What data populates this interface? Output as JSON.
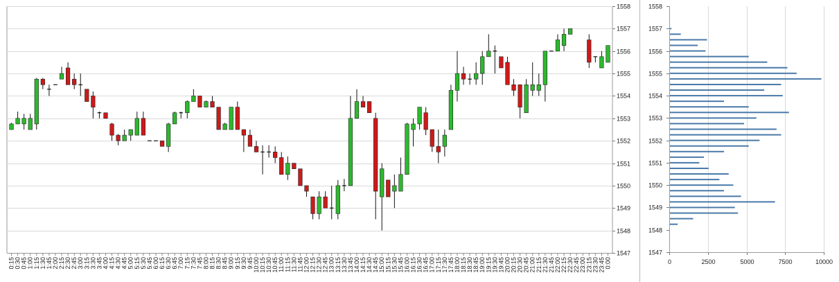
{
  "chart_data": [
    {
      "type": "candlestick",
      "title": "",
      "xlabel": "",
      "ylabel": "",
      "ylim": [
        1547,
        1558
      ],
      "y_ticks": [
        1547,
        1548,
        1549,
        1550,
        1551,
        1552,
        1553,
        1554,
        1555,
        1556,
        1557,
        1558
      ],
      "y_tick_labels": [
        "1547",
        "1548",
        "1549",
        "1550",
        "1551",
        "1552",
        "1553",
        "1554",
        "1555",
        "1556",
        "1557",
        "1558"
      ],
      "y_axis_position": "right",
      "grid": "horizontal",
      "up_color": "#2eb82e",
      "down_color": "#cc1a1a",
      "categories": [
        "0:15",
        "0:30",
        "0:45",
        "1:00",
        "1:15",
        "1:30",
        "1:45",
        "2:00",
        "2:15",
        "2:30",
        "2:45",
        "3:00",
        "3:15",
        "3:30",
        "3:45",
        "4:00",
        "4:15",
        "4:30",
        "4:45",
        "5:00",
        "5:15",
        "5:30",
        "5:45",
        "6:00",
        "6:15",
        "6:30",
        "6:45",
        "7:00",
        "7:15",
        "7:30",
        "7:45",
        "8:00",
        "8:15",
        "8:30",
        "8:45",
        "9:00",
        "9:15",
        "9:30",
        "9:45",
        "10:00",
        "10:15",
        "10:30",
        "10:45",
        "11:00",
        "11:15",
        "11:30",
        "11:45",
        "12:00",
        "12:15",
        "12:30",
        "12:45",
        "13:00",
        "13:15",
        "13:30",
        "13:45",
        "14:00",
        "14:15",
        "14:30",
        "14:45",
        "15:00",
        "15:15",
        "15:30",
        "15:45",
        "16:00",
        "16:15",
        "16:30",
        "16:45",
        "17:00",
        "17:15",
        "17:30",
        "17:45",
        "18:00",
        "18:15",
        "18:30",
        "18:45",
        "19:00",
        "19:15",
        "19:30",
        "19:45",
        "20:00",
        "20:15",
        "20:30",
        "20:45",
        "21:00",
        "21:15",
        "21:30",
        "21:45",
        "22:00",
        "22:15",
        "22:30",
        "22:45",
        "23:00",
        "23:15",
        "23:30",
        "23:45",
        "0:00"
      ],
      "candles": [
        {
          "o": 1552.5,
          "h": 1552.8,
          "l": 1552.5,
          "c": 1552.75
        },
        {
          "o": 1552.75,
          "h": 1553.3,
          "l": 1552.75,
          "c": 1553.0
        },
        {
          "o": 1552.75,
          "h": 1553.2,
          "l": 1552.5,
          "c": 1553.0
        },
        {
          "o": 1552.5,
          "h": 1553.2,
          "l": 1552.5,
          "c": 1553.0
        },
        {
          "o": 1552.75,
          "h": 1554.8,
          "l": 1552.5,
          "c": 1554.75
        },
        {
          "o": 1554.75,
          "h": 1554.8,
          "l": 1554.3,
          "c": 1554.5
        },
        {
          "o": 1554.3,
          "h": 1554.5,
          "l": 1554.0,
          "c": 1554.3
        },
        {
          "o": 1554.5,
          "h": 1554.5,
          "l": 1554.5,
          "c": 1554.5
        },
        {
          "o": 1554.75,
          "h": 1555.3,
          "l": 1554.75,
          "c": 1555.0
        },
        {
          "o": 1555.25,
          "h": 1555.5,
          "l": 1554.5,
          "c": 1554.5
        },
        {
          "o": 1554.75,
          "h": 1555.0,
          "l": 1554.3,
          "c": 1554.5
        },
        {
          "o": 1554.5,
          "h": 1555.0,
          "l": 1554.0,
          "c": 1554.5
        },
        {
          "o": 1554.3,
          "h": 1554.3,
          "l": 1553.75,
          "c": 1553.75
        },
        {
          "o": 1554.0,
          "h": 1554.2,
          "l": 1553.0,
          "c": 1553.5
        },
        {
          "o": 1553.25,
          "h": 1553.3,
          "l": 1553.0,
          "c": 1553.25
        },
        {
          "o": 1553.25,
          "h": 1553.25,
          "l": 1553.0,
          "c": 1553.0
        },
        {
          "o": 1552.75,
          "h": 1552.8,
          "l": 1552.0,
          "c": 1552.25
        },
        {
          "o": 1552.25,
          "h": 1552.3,
          "l": 1551.8,
          "c": 1552.0
        },
        {
          "o": 1552.0,
          "h": 1552.5,
          "l": 1552.0,
          "c": 1552.25
        },
        {
          "o": 1552.25,
          "h": 1552.5,
          "l": 1552.0,
          "c": 1552.5
        },
        {
          "o": 1552.25,
          "h": 1553.3,
          "l": 1552.25,
          "c": 1553.0
        },
        {
          "o": 1553.0,
          "h": 1553.3,
          "l": 1552.25,
          "c": 1552.25
        },
        {
          "o": 1552.0,
          "h": 1552.0,
          "l": 1552.0,
          "c": 1552.0
        },
        {
          "o": 1552.0,
          "h": 1552.0,
          "l": 1552.0,
          "c": 1552.0
        },
        {
          "o": 1552.0,
          "h": 1552.0,
          "l": 1551.75,
          "c": 1551.75
        },
        {
          "o": 1551.75,
          "h": 1552.8,
          "l": 1551.5,
          "c": 1552.75
        },
        {
          "o": 1552.75,
          "h": 1553.3,
          "l": 1552.75,
          "c": 1553.25
        },
        {
          "o": 1553.25,
          "h": 1553.3,
          "l": 1553.0,
          "c": 1553.25
        },
        {
          "o": 1553.25,
          "h": 1553.8,
          "l": 1553.0,
          "c": 1553.75
        },
        {
          "o": 1553.75,
          "h": 1554.3,
          "l": 1553.75,
          "c": 1554.0
        },
        {
          "o": 1554.0,
          "h": 1554.0,
          "l": 1553.5,
          "c": 1553.5
        },
        {
          "o": 1553.5,
          "h": 1553.8,
          "l": 1553.5,
          "c": 1553.75
        },
        {
          "o": 1553.75,
          "h": 1554.0,
          "l": 1553.5,
          "c": 1553.5
        },
        {
          "o": 1553.5,
          "h": 1553.5,
          "l": 1552.5,
          "c": 1552.5
        },
        {
          "o": 1552.5,
          "h": 1552.8,
          "l": 1552.5,
          "c": 1552.75
        },
        {
          "o": 1552.5,
          "h": 1553.5,
          "l": 1552.5,
          "c": 1553.5
        },
        {
          "o": 1553.5,
          "h": 1553.75,
          "l": 1552.5,
          "c": 1552.5
        },
        {
          "o": 1552.5,
          "h": 1552.5,
          "l": 1551.5,
          "c": 1552.25
        },
        {
          "o": 1552.25,
          "h": 1552.5,
          "l": 1551.75,
          "c": 1551.75
        },
        {
          "o": 1551.75,
          "h": 1552.0,
          "l": 1551.5,
          "c": 1551.5
        },
        {
          "o": 1551.5,
          "h": 1551.8,
          "l": 1550.5,
          "c": 1551.5
        },
        {
          "o": 1551.5,
          "h": 1551.8,
          "l": 1551.25,
          "c": 1551.5
        },
        {
          "o": 1551.5,
          "h": 1551.75,
          "l": 1551.0,
          "c": 1551.25
        },
        {
          "o": 1551.25,
          "h": 1551.5,
          "l": 1550.5,
          "c": 1550.5
        },
        {
          "o": 1550.5,
          "h": 1551.3,
          "l": 1550.25,
          "c": 1551.0
        },
        {
          "o": 1551.0,
          "h": 1551.0,
          "l": 1550.75,
          "c": 1550.75
        },
        {
          "o": 1550.75,
          "h": 1550.75,
          "l": 1550.0,
          "c": 1550.0
        },
        {
          "o": 1550.0,
          "h": 1550.0,
          "l": 1549.5,
          "c": 1549.75
        },
        {
          "o": 1549.5,
          "h": 1549.5,
          "l": 1548.5,
          "c": 1548.75
        },
        {
          "o": 1548.75,
          "h": 1549.75,
          "l": 1548.5,
          "c": 1549.5
        },
        {
          "o": 1549.5,
          "h": 1549.75,
          "l": 1549.0,
          "c": 1549.0
        },
        {
          "o": 1549.0,
          "h": 1550.0,
          "l": 1548.5,
          "c": 1549.0
        },
        {
          "o": 1548.75,
          "h": 1550.25,
          "l": 1548.5,
          "c": 1550.0
        },
        {
          "o": 1550.0,
          "h": 1550.3,
          "l": 1549.75,
          "c": 1550.0
        },
        {
          "o": 1550.0,
          "h": 1554.0,
          "l": 1550.0,
          "c": 1553.0
        },
        {
          "o": 1553.0,
          "h": 1554.3,
          "l": 1553.0,
          "c": 1553.75
        },
        {
          "o": 1553.75,
          "h": 1554.0,
          "l": 1553.5,
          "c": 1553.5
        },
        {
          "o": 1553.75,
          "h": 1553.75,
          "l": 1553.25,
          "c": 1553.25
        },
        {
          "o": 1553.0,
          "h": 1553.25,
          "l": 1548.5,
          "c": 1549.75
        },
        {
          "o": 1549.5,
          "h": 1551.0,
          "l": 1548.0,
          "c": 1550.75
        },
        {
          "o": 1550.25,
          "h": 1550.25,
          "l": 1549.5,
          "c": 1549.5
        },
        {
          "o": 1549.75,
          "h": 1550.5,
          "l": 1549.0,
          "c": 1550.0
        },
        {
          "o": 1549.75,
          "h": 1551.25,
          "l": 1549.75,
          "c": 1550.5
        },
        {
          "o": 1550.5,
          "h": 1552.8,
          "l": 1550.5,
          "c": 1552.75
        },
        {
          "o": 1552.5,
          "h": 1553.0,
          "l": 1551.75,
          "c": 1552.75
        },
        {
          "o": 1552.75,
          "h": 1553.5,
          "l": 1552.5,
          "c": 1553.5
        },
        {
          "o": 1553.25,
          "h": 1553.5,
          "l": 1552.25,
          "c": 1552.5
        },
        {
          "o": 1552.5,
          "h": 1552.5,
          "l": 1551.5,
          "c": 1551.75
        },
        {
          "o": 1551.75,
          "h": 1552.5,
          "l": 1551.0,
          "c": 1551.5
        },
        {
          "o": 1551.75,
          "h": 1552.5,
          "l": 1551.3,
          "c": 1552.25
        },
        {
          "o": 1552.5,
          "h": 1554.5,
          "l": 1552.5,
          "c": 1554.25
        },
        {
          "o": 1554.25,
          "h": 1556.0,
          "l": 1553.75,
          "c": 1555.0
        },
        {
          "o": 1555.0,
          "h": 1555.3,
          "l": 1554.5,
          "c": 1554.75
        },
        {
          "o": 1554.75,
          "h": 1555.0,
          "l": 1554.5,
          "c": 1554.75
        },
        {
          "o": 1554.75,
          "h": 1555.5,
          "l": 1554.5,
          "c": 1555.0
        },
        {
          "o": 1555.0,
          "h": 1556.0,
          "l": 1554.5,
          "c": 1555.75
        },
        {
          "o": 1555.75,
          "h": 1556.75,
          "l": 1555.75,
          "c": 1556.0
        },
        {
          "o": 1556.0,
          "h": 1556.25,
          "l": 1555.0,
          "c": 1556.0
        },
        {
          "o": 1555.75,
          "h": 1555.75,
          "l": 1555.25,
          "c": 1555.25
        },
        {
          "o": 1555.5,
          "h": 1555.75,
          "l": 1554.5,
          "c": 1554.5
        },
        {
          "o": 1554.5,
          "h": 1554.75,
          "l": 1554.0,
          "c": 1554.25
        },
        {
          "o": 1554.5,
          "h": 1554.5,
          "l": 1553.0,
          "c": 1553.5
        },
        {
          "o": 1553.25,
          "h": 1554.75,
          "l": 1553.25,
          "c": 1554.5
        },
        {
          "o": 1554.25,
          "h": 1555.5,
          "l": 1554.0,
          "c": 1554.5
        },
        {
          "o": 1554.25,
          "h": 1555.0,
          "l": 1554.0,
          "c": 1554.5
        },
        {
          "o": 1554.5,
          "h": 1556.0,
          "l": 1553.75,
          "c": 1556.0
        },
        {
          "o": 1556.0,
          "h": 1556.0,
          "l": 1556.0,
          "c": 1556.0
        },
        {
          "o": 1556.0,
          "h": 1556.75,
          "l": 1556.0,
          "c": 1556.5
        },
        {
          "o": 1556.25,
          "h": 1557.0,
          "l": 1556.0,
          "c": 1556.75
        },
        {
          "o": 1556.75,
          "h": 1557.0,
          "l": 1556.75,
          "c": 1557.0
        },
        null,
        null,
        {
          "o": 1556.5,
          "h": 1556.75,
          "l": 1555.25,
          "c": 1555.5
        },
        {
          "o": 1555.75,
          "h": 1555.75,
          "l": 1555.5,
          "c": 1555.75
        },
        {
          "o": 1555.25,
          "h": 1556.0,
          "l": 1555.25,
          "c": 1555.75
        },
        {
          "o": 1555.5,
          "h": 1556.25,
          "l": 1555.5,
          "c": 1556.25
        }
      ]
    },
    {
      "type": "bar",
      "orientation": "horizontal",
      "title": "",
      "xlabel": "",
      "ylabel": "",
      "xlim": [
        0,
        10000
      ],
      "x_ticks": [
        0,
        2500,
        5000,
        7500,
        10000
      ],
      "x_tick_labels": [
        "0",
        "2500",
        "5000",
        "7500",
        "10000"
      ],
      "ylim": [
        1547,
        1558
      ],
      "y_ticks": [
        1547,
        1548,
        1549,
        1550,
        1551,
        1552,
        1553,
        1554,
        1555,
        1556,
        1557,
        1558
      ],
      "y_tick_labels": [
        "1547",
        "1548",
        "1549",
        "1550",
        "1551",
        "1552",
        "1553",
        "1554",
        "1555",
        "1556",
        "1557",
        "1558"
      ],
      "grid": "vertical",
      "bar_color": "#4a79a8",
      "prices": [
        1548.25,
        1548.5,
        1548.75,
        1549.0,
        1549.25,
        1549.5,
        1549.75,
        1550.0,
        1550.25,
        1550.5,
        1550.75,
        1551.0,
        1551.25,
        1551.5,
        1551.75,
        1552.0,
        1552.25,
        1552.5,
        1552.75,
        1553.0,
        1553.25,
        1553.5,
        1553.75,
        1554.0,
        1554.25,
        1554.5,
        1554.75,
        1555.0,
        1555.25,
        1555.5,
        1555.75,
        1556.0,
        1556.25,
        1556.5,
        1556.75,
        1557.0
      ],
      "values": [
        500,
        1500,
        4400,
        4200,
        6800,
        4600,
        3500,
        4100,
        3200,
        3800,
        2500,
        1900,
        2200,
        3500,
        5100,
        5800,
        7200,
        6900,
        4800,
        5600,
        7700,
        5100,
        3500,
        7300,
        6100,
        7200,
        9800,
        8200,
        7600,
        6300,
        5100,
        2300,
        1800,
        2400,
        700,
        100
      ]
    }
  ]
}
